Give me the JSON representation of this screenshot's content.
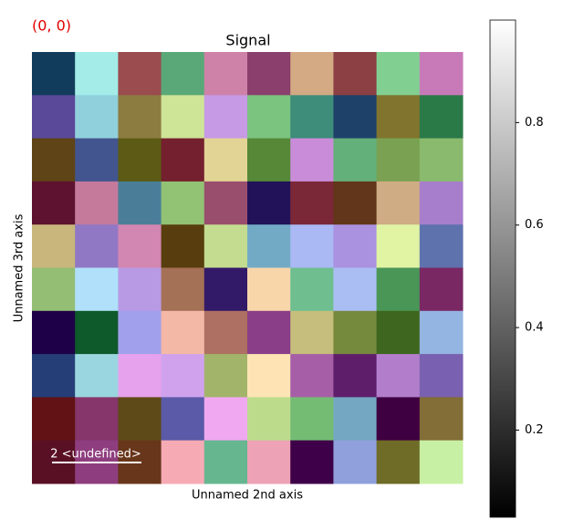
{
  "chart_data": {
    "type": "image",
    "title": "Signal",
    "annotation": "(0, 0)",
    "xlabel": "Unnamed 2nd axis",
    "ylabel": "Unnamed 3rd axis",
    "scalebar_label": "2 <undefined>",
    "pixels": [
      [
        "#123c5c",
        "#a3ece8",
        "#9a4c4e",
        "#5aa878",
        "#cf82a8",
        "#8a3f6c",
        "#d3aa84",
        "#8c4044",
        "#82cf92",
        "#c87ab8"
      ],
      [
        "#5a4898",
        "#90d0dc",
        "#8c7c40",
        "#cee496",
        "#c69ae4",
        "#7ac480",
        "#3e8c7a",
        "#1e416a",
        "#80742e",
        "#2a7a48"
      ],
      [
        "#5e4416",
        "#42558f",
        "#5c5a14",
        "#74202e",
        "#e2d494",
        "#568838",
        "#c98cd8",
        "#64b07a",
        "#7aa152",
        "#8aba6e"
      ],
      [
        "#5e1230",
        "#c57a9c",
        "#4a7e98",
        "#92c274",
        "#9a4e6e",
        "#22125a",
        "#7a2838",
        "#62361a",
        "#d0ac84",
        "#a67ecc"
      ],
      [
        "#c8b67c",
        "#9078c4",
        "#d286b2",
        "#583e0e",
        "#c4dc90",
        "#72aac6",
        "#aab8f4",
        "#aa92e0",
        "#e0f4a4",
        "#5e72ae"
      ],
      [
        "#94be74",
        "#b0e0fa",
        "#b89ae4",
        "#a47056",
        "#321a68",
        "#f8d6aa",
        "#6ebe90",
        "#aabef4",
        "#4a9656",
        "#7a2864"
      ],
      [
        "#1e0048",
        "#0e5a2a",
        "#a0a0ec",
        "#f4b8a6",
        "#ae7062",
        "#8a3e88",
        "#c6be7c",
        "#768a3e",
        "#3e661e",
        "#94b4e2"
      ],
      [
        "#263e78",
        "#9ad6e0",
        "#e6a2ec",
        "#d0a2ee",
        "#a2b46a",
        "#fee4b4",
        "#a65ea6",
        "#5e1e6a",
        "#b27ecc",
        "#7a60b0"
      ],
      [
        "#621214",
        "#86366a",
        "#5e4a18",
        "#5a5aa8",
        "#f0a8f0",
        "#bcdc8c",
        "#74bc74",
        "#74a8c2",
        "#3e0040",
        "#826e36"
      ],
      [
        "#5a1024",
        "#8e3e7e",
        "#68361a",
        "#f6aab4",
        "#66b690",
        "#eea2b6",
        "#3e0048",
        "#90a0dc",
        "#6e6c26",
        "#c8f0a4"
      ]
    ],
    "colorbar": {
      "ylim": [
        0.03,
        1.0
      ],
      "yticks": [
        0.2,
        0.4,
        0.6,
        0.8
      ]
    }
  }
}
